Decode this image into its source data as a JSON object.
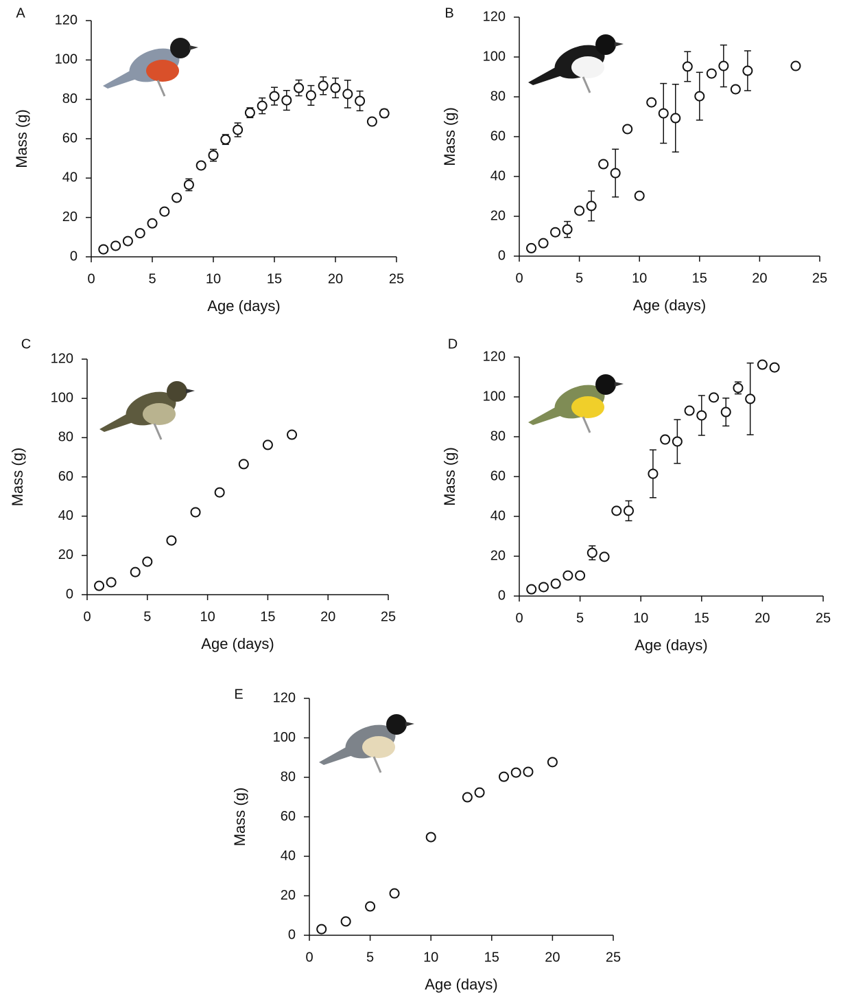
{
  "chart_data": [
    {
      "type": "scatter",
      "panel": "A",
      "xlabel": "Age (days)",
      "ylabel": "Mass (g)",
      "x": [
        1,
        2,
        3,
        4,
        5,
        6,
        7,
        8,
        9,
        10,
        11,
        12,
        13,
        14,
        15,
        16,
        17,
        18,
        19,
        20,
        21,
        22,
        23,
        24
      ],
      "values": [
        3.8,
        5.6,
        8,
        12,
        17,
        23,
        30,
        36.6,
        46.4,
        51.6,
        59.6,
        64.5,
        73.2,
        76.7,
        81.6,
        79.5,
        85.8,
        82,
        86.9,
        85.8,
        82.7,
        79.2,
        68.7,
        72.9
      ],
      "errors": [
        null,
        null,
        null,
        null,
        null,
        null,
        null,
        3,
        null,
        3,
        2.5,
        3.5,
        2.5,
        4,
        4.5,
        5,
        4,
        5,
        4.5,
        5,
        7,
        5,
        1.5,
        2
      ],
      "xlim": [
        0,
        25
      ],
      "ylim": [
        0,
        120
      ],
      "xticks": [
        0,
        5,
        10,
        15,
        20,
        25
      ],
      "yticks": [
        0,
        20,
        40,
        60,
        80,
        100,
        120
      ]
    },
    {
      "type": "scatter",
      "panel": "B",
      "xlabel": "Age (days)",
      "ylabel": "Mass (g)",
      "x": [
        1,
        2,
        3,
        4,
        5,
        6,
        7,
        8,
        9,
        10,
        11,
        12,
        13,
        14,
        15,
        16,
        17,
        18,
        19,
        23
      ],
      "values": [
        4,
        6.5,
        12,
        13.4,
        22.8,
        25.2,
        46.2,
        41.7,
        63.8,
        30.3,
        77.2,
        71.7,
        69.3,
        95.2,
        80.3,
        91.7,
        95.5,
        83.8,
        93.1,
        95.5
      ],
      "errors": [
        null,
        null,
        null,
        4,
        null,
        7.5,
        null,
        12,
        null,
        null,
        null,
        15,
        17,
        7.5,
        12,
        null,
        10.5,
        null,
        10,
        null
      ],
      "xlim": [
        0,
        25
      ],
      "ylim": [
        0,
        120
      ],
      "xticks": [
        0,
        5,
        10,
        15,
        20,
        25
      ],
      "yticks": [
        0,
        20,
        40,
        60,
        80,
        100,
        120
      ]
    },
    {
      "type": "scatter",
      "panel": "C",
      "xlabel": "Age (days)",
      "ylabel": "Mass (g)",
      "x": [
        1,
        2,
        4,
        5,
        7,
        9,
        11,
        13,
        15,
        17
      ],
      "values": [
        4.5,
        6.3,
        11.5,
        16.8,
        27.6,
        42,
        52.1,
        66.5,
        76.3,
        81.5
      ],
      "xlim": [
        0,
        25
      ],
      "ylim": [
        0,
        120
      ],
      "xticks": [
        0,
        5,
        10,
        15,
        20,
        25
      ],
      "yticks": [
        0,
        20,
        40,
        60,
        80,
        100,
        120
      ]
    },
    {
      "type": "scatter",
      "panel": "D",
      "xlabel": "Age (days)",
      "ylabel": "Mass (g)",
      "x": [
        1,
        2,
        3,
        4,
        5,
        6,
        7,
        8,
        9,
        11,
        12,
        13,
        14,
        15,
        16,
        17,
        18,
        19,
        20,
        21
      ],
      "values": [
        3.4,
        4.5,
        6.2,
        10.3,
        10.3,
        21.7,
        19.7,
        42.8,
        42.8,
        61.4,
        78.6,
        77.6,
        93.1,
        90.7,
        99.7,
        92.4,
        104.5,
        99,
        116.2,
        114.8
      ],
      "errors": [
        null,
        null,
        null,
        null,
        null,
        3.5,
        null,
        null,
        5,
        12,
        null,
        11,
        null,
        10,
        null,
        7,
        3,
        18,
        null,
        null
      ],
      "xlim": [
        0,
        25
      ],
      "ylim": [
        0,
        120
      ],
      "xticks": [
        0,
        5,
        10,
        15,
        20,
        25
      ],
      "yticks": [
        0,
        20,
        40,
        60,
        80,
        100,
        120
      ]
    },
    {
      "type": "scatter",
      "panel": "E",
      "xlabel": "Age (days)",
      "ylabel": "Mass (g)",
      "x": [
        1,
        3,
        5,
        7,
        10,
        13,
        14,
        16,
        17,
        18,
        20
      ],
      "values": [
        3.1,
        7,
        14.6,
        21.2,
        49.7,
        69.9,
        72.3,
        80.3,
        82.4,
        82.8,
        87.7
      ],
      "xlim": [
        0,
        25
      ],
      "ylim": [
        0,
        120
      ],
      "xticks": [
        0,
        5,
        10,
        15,
        20,
        25
      ],
      "yticks": [
        0,
        20,
        40,
        60,
        80,
        100,
        120
      ]
    }
  ]
}
